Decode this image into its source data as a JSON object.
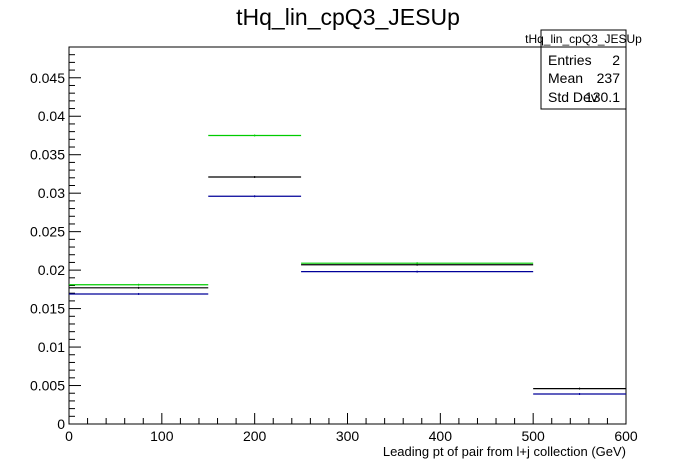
{
  "chart_data": {
    "type": "step",
    "title": "tHq_lin_cpQ3_JESUp",
    "xlabel": "Leading pt of pair from l+j collection (GeV)",
    "ylabel": "",
    "xlim": [
      0,
      600
    ],
    "ylim": [
      0,
      0.049
    ],
    "x_ticks": [
      0,
      100,
      200,
      300,
      400,
      500,
      600
    ],
    "x_tick_labels": [
      "0",
      "100",
      "200",
      "300",
      "400",
      "500",
      "600"
    ],
    "y_ticks": [
      0,
      0.005,
      0.01,
      0.015,
      0.02,
      0.025,
      0.03,
      0.035,
      0.04,
      0.045
    ],
    "y_tick_labels": [
      "0",
      "0.005",
      "0.01",
      "0.015",
      "0.02",
      "0.025",
      "0.03",
      "0.035",
      "0.04",
      "0.045"
    ],
    "grid": false,
    "bin_edges": [
      0,
      150,
      250,
      500,
      600
    ],
    "series": [
      {
        "color": "#000000",
        "values": [
          0.0177,
          0.0321,
          0.0207,
          0.0046
        ]
      },
      {
        "color": "#00cc00",
        "values": [
          0.0181,
          0.0375,
          0.0209,
          0
        ]
      },
      {
        "color": "#000099",
        "values": [
          0.0169,
          0.0296,
          0.0198,
          0.0039
        ]
      }
    ],
    "stats_box": {
      "title": "tHq_lin_cpQ3_JESUp",
      "position": "top-right",
      "rows": [
        {
          "label": "Entries",
          "value": "2"
        },
        {
          "label": "Mean",
          "value": "237"
        },
        {
          "label": "Std Dev",
          "value": "130.1"
        }
      ]
    }
  }
}
